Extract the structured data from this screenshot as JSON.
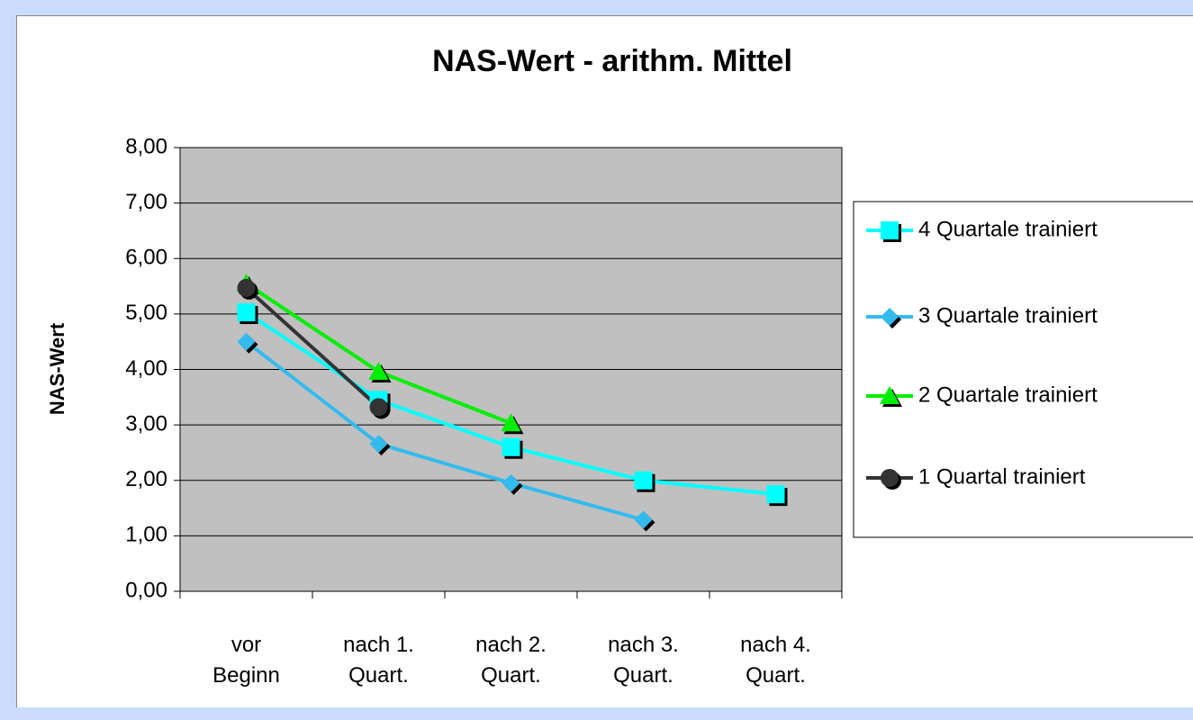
{
  "chart_data": {
    "type": "line",
    "title": "NAS-Wert - arithm. Mittel",
    "y_label": "NAS-Wert",
    "categories": [
      "vor\nBeginn",
      "nach 1.\nQuart.",
      "nach 2.\nQuart.",
      "nach 3.\nQuart.",
      "nach 4.\nQuart."
    ],
    "series": [
      {
        "name": "4 Quartale trainiert",
        "color": "#00ffff",
        "marker": "square",
        "values": [
          5.03,
          3.45,
          2.6,
          2.0,
          1.75
        ]
      },
      {
        "name": "3 Quartale trainiert",
        "color": "#33bbee",
        "marker": "diamond",
        "values": [
          4.5,
          2.66,
          1.95,
          1.29,
          null
        ]
      },
      {
        "name": "2 Quartale trainiert",
        "color": "#00ee00",
        "marker": "triangle",
        "values": [
          5.55,
          3.96,
          3.03,
          null,
          null
        ]
      },
      {
        "name": "1 Quartal trainiert",
        "color": "#333333",
        "marker": "circle",
        "values": [
          5.47,
          3.32,
          null,
          null,
          null
        ]
      }
    ],
    "ylim": [
      0,
      8
    ],
    "yticks": [
      {
        "value": 0,
        "label": "0,00"
      },
      {
        "value": 1,
        "label": "1,00"
      },
      {
        "value": 2,
        "label": "2,00"
      },
      {
        "value": 3,
        "label": "3,00"
      },
      {
        "value": 4,
        "label": "4,00"
      },
      {
        "value": 5,
        "label": "5,00"
      },
      {
        "value": 6,
        "label": "6,00"
      },
      {
        "value": 7,
        "label": "7,00"
      },
      {
        "value": 8,
        "label": "8,00"
      }
    ],
    "grid": true,
    "legend": "right",
    "plot_background": "#c0c0c0"
  }
}
